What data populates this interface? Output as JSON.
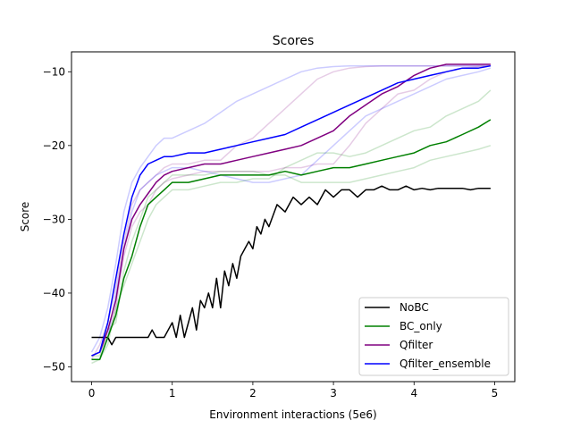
{
  "chart_data": {
    "type": "line",
    "title": "Scores",
    "xlabel": "Environment interactions (5e6)",
    "ylabel": "Score",
    "xlim": [
      -0.25,
      5.25
    ],
    "ylim": [
      -52,
      -7.3
    ],
    "xticks": [
      0,
      1,
      2,
      3,
      4,
      5
    ],
    "xtick_labels": [
      "0",
      "1",
      "2",
      "3",
      "4",
      "5"
    ],
    "yticks": [
      -50,
      -40,
      -30,
      -20,
      -10
    ],
    "ytick_labels": [
      "−50",
      "−40",
      "−30",
      "−20",
      "−10"
    ],
    "grid": false,
    "legend_position": "lower right",
    "series": [
      {
        "name": "NoBC",
        "color": "#000000",
        "x": [
          0,
          0.1,
          0.2,
          0.25,
          0.3,
          0.4,
          0.5,
          0.6,
          0.7,
          0.75,
          0.8,
          0.9,
          0.95,
          1.0,
          1.05,
          1.1,
          1.15,
          1.2,
          1.25,
          1.3,
          1.35,
          1.4,
          1.45,
          1.5,
          1.55,
          1.6,
          1.65,
          1.7,
          1.75,
          1.8,
          1.85,
          1.9,
          1.95,
          2.0,
          2.05,
          2.1,
          2.15,
          2.2,
          2.3,
          2.4,
          2.5,
          2.6,
          2.7,
          2.8,
          2.9,
          3.0,
          3.1,
          3.2,
          3.3,
          3.4,
          3.5,
          3.6,
          3.7,
          3.8,
          3.9,
          4.0,
          4.1,
          4.2,
          4.3,
          4.4,
          4.5,
          4.6,
          4.7,
          4.8,
          4.9,
          4.95
        ],
        "values": [
          -46,
          -46,
          -46,
          -47,
          -46,
          -46,
          -46,
          -46,
          -46,
          -45,
          -46,
          -46,
          -45,
          -44,
          -46,
          -43,
          -46,
          -44,
          -42,
          -45,
          -41,
          -42,
          -40,
          -42,
          -38,
          -42,
          -37,
          -39,
          -36,
          -38,
          -35,
          -34,
          -33,
          -34,
          -31,
          -32,
          -30,
          -31,
          -28,
          -29,
          -27,
          -28,
          -27,
          -28,
          -26,
          -27,
          -26,
          -26,
          -27,
          -26,
          -26,
          -25.5,
          -26,
          -26,
          -25.5,
          -26,
          -25.8,
          -26,
          -25.8,
          -25.8,
          -25.8,
          -25.8,
          -26,
          -25.8,
          -25.8,
          -25.8
        ]
      },
      {
        "name": "BC_only",
        "color": "#008000",
        "x": [
          0,
          0.1,
          0.2,
          0.3,
          0.4,
          0.5,
          0.6,
          0.7,
          0.8,
          0.9,
          1.0,
          1.2,
          1.4,
          1.6,
          1.8,
          2.0,
          2.2,
          2.4,
          2.6,
          2.8,
          3.0,
          3.2,
          3.4,
          3.6,
          3.8,
          4.0,
          4.2,
          4.4,
          4.6,
          4.8,
          4.95
        ],
        "values": [
          -49,
          -49,
          -46,
          -43,
          -38,
          -35,
          -31,
          -28,
          -27,
          -26,
          -25,
          -25,
          -24.5,
          -24,
          -24,
          -24,
          -24,
          -23.5,
          -24,
          -23.5,
          -23,
          -23,
          -22.5,
          -22,
          -21.5,
          -21,
          -20,
          -19.5,
          -18.5,
          -17.5,
          -16.5
        ]
      },
      {
        "name": "Qfilter",
        "color": "#800080",
        "x": [
          0,
          0.1,
          0.2,
          0.3,
          0.4,
          0.5,
          0.6,
          0.7,
          0.8,
          0.9,
          1.0,
          1.2,
          1.4,
          1.6,
          1.8,
          2.0,
          2.2,
          2.4,
          2.6,
          2.8,
          3.0,
          3.2,
          3.4,
          3.6,
          3.8,
          4.0,
          4.2,
          4.4,
          4.6,
          4.8,
          4.95
        ],
        "values": [
          -48.5,
          -48,
          -45,
          -41,
          -34,
          -30,
          -28,
          -26.5,
          -25,
          -24,
          -23.5,
          -23,
          -22.5,
          -22.5,
          -22,
          -21.5,
          -21,
          -20.5,
          -20,
          -19,
          -18,
          -16,
          -14.5,
          -13,
          -12,
          -10.5,
          -9.5,
          -9,
          -9,
          -9,
          -9
        ]
      },
      {
        "name": "Qfilter_ensemble",
        "color": "#0000ff",
        "x": [
          0,
          0.1,
          0.2,
          0.3,
          0.4,
          0.5,
          0.6,
          0.7,
          0.8,
          0.9,
          1.0,
          1.2,
          1.4,
          1.6,
          1.8,
          2.0,
          2.2,
          2.4,
          2.6,
          2.8,
          3.0,
          3.2,
          3.4,
          3.6,
          3.8,
          4.0,
          4.2,
          4.4,
          4.6,
          4.8,
          4.95
        ],
        "values": [
          -48.5,
          -48,
          -44,
          -38,
          -32,
          -27,
          -24,
          -22.5,
          -22,
          -21.5,
          -21.5,
          -21,
          -21,
          -20.5,
          -20,
          -19.5,
          -19,
          -18.5,
          -17.5,
          -16.5,
          -15.5,
          -14.5,
          -13.5,
          -12.5,
          -11.5,
          -11,
          -10.5,
          -10,
          -9.5,
          -9.5,
          -9.2
        ]
      }
    ],
    "background_runs": [
      {
        "color": "#008000",
        "x": [
          0,
          0.1,
          0.2,
          0.3,
          0.4,
          0.5,
          0.6,
          0.7,
          0.8,
          0.9,
          1.0,
          1.2,
          1.4,
          1.6,
          1.8,
          2.0,
          2.2,
          2.4,
          2.6,
          2.8,
          3.0,
          3.2,
          3.4,
          3.6,
          3.8,
          4.0,
          4.2,
          4.4,
          4.6,
          4.8,
          4.95
        ],
        "values": [
          -49.5,
          -49,
          -47,
          -42,
          -39,
          -36,
          -33,
          -30,
          -28,
          -27,
          -26,
          -26,
          -25.5,
          -25,
          -25,
          -24.5,
          -24.5,
          -23,
          -22,
          -21,
          -21,
          -21.5,
          -21,
          -20,
          -19,
          -18,
          -17.5,
          -16,
          -15,
          -14,
          -12.5
        ]
      },
      {
        "color": "#008000",
        "x": [
          0,
          0.1,
          0.2,
          0.3,
          0.4,
          0.5,
          0.6,
          0.7,
          0.8,
          0.9,
          1.0,
          1.2,
          1.4,
          1.6,
          1.8,
          2.0,
          2.2,
          2.4,
          2.6,
          2.8,
          3.0,
          3.2,
          3.4,
          3.6,
          3.8,
          4.0,
          4.2,
          4.4,
          4.6,
          4.8,
          4.95
        ],
        "values": [
          -48.5,
          -48.5,
          -45,
          -44,
          -37,
          -33,
          -30,
          -27,
          -26,
          -25,
          -24,
          -24,
          -24,
          -23.5,
          -23.5,
          -23.5,
          -24,
          -24,
          -25,
          -25,
          -25,
          -25,
          -24.5,
          -24,
          -23.5,
          -23,
          -22,
          -21.5,
          -21,
          -20.5,
          -20
        ]
      },
      {
        "color": "#800080",
        "x": [
          0,
          0.1,
          0.2,
          0.3,
          0.4,
          0.5,
          0.6,
          0.7,
          0.8,
          0.9,
          1.0,
          1.2,
          1.4,
          1.6,
          1.8,
          2.0,
          2.2,
          2.4,
          2.6,
          2.8,
          3.0,
          3.2,
          3.4,
          3.6,
          3.8,
          4.0,
          4.2,
          4.4,
          4.6,
          4.8,
          4.95
        ],
        "values": [
          -49,
          -47,
          -44,
          -39,
          -33,
          -28,
          -26,
          -25,
          -24,
          -23,
          -22.5,
          -22.5,
          -22,
          -22,
          -20,
          -19,
          -17,
          -15,
          -13,
          -11,
          -10,
          -9.5,
          -9.3,
          -9.2,
          -9.2,
          -9.2,
          -9.2,
          -9.2,
          -9.2,
          -9.2,
          -9.2
        ]
      },
      {
        "color": "#800080",
        "x": [
          0,
          0.1,
          0.2,
          0.3,
          0.4,
          0.5,
          0.6,
          0.7,
          0.8,
          0.9,
          1.0,
          1.2,
          1.4,
          1.6,
          1.8,
          2.0,
          2.2,
          2.4,
          2.6,
          2.8,
          3.0,
          3.2,
          3.4,
          3.6,
          3.8,
          4.0,
          4.2,
          4.4,
          4.6,
          4.8,
          4.95
        ],
        "values": [
          -48.5,
          -48,
          -46,
          -42,
          -35,
          -31,
          -29,
          -28,
          -26,
          -25,
          -24.5,
          -24,
          -23.5,
          -23.5,
          -23.5,
          -23.5,
          -23.5,
          -23,
          -23,
          -22.5,
          -22.5,
          -20,
          -17,
          -15,
          -13,
          -12.5,
          -11,
          -10,
          -9.5,
          -9.3,
          -9.2
        ]
      },
      {
        "color": "#0000ff",
        "x": [
          0,
          0.1,
          0.2,
          0.3,
          0.4,
          0.5,
          0.6,
          0.7,
          0.8,
          0.9,
          1.0,
          1.2,
          1.4,
          1.6,
          1.8,
          2.0,
          2.2,
          2.4,
          2.6,
          2.8,
          3.0,
          3.2,
          3.4,
          3.6,
          3.8,
          4.0,
          4.2,
          4.4,
          4.6,
          4.8,
          4.95
        ],
        "values": [
          -48,
          -46,
          -42,
          -36,
          -29,
          -25,
          -23,
          -21.5,
          -20,
          -19,
          -19,
          -18,
          -17,
          -15.5,
          -14,
          -13,
          -12,
          -11,
          -10,
          -9.5,
          -9.3,
          -9.2,
          -9.2,
          -9.2,
          -9.2,
          -9.2,
          -9.2,
          -9.2,
          -9.2,
          -9.2,
          -9.2
        ]
      },
      {
        "color": "#0000ff",
        "x": [
          0,
          0.1,
          0.2,
          0.3,
          0.4,
          0.5,
          0.6,
          0.7,
          0.8,
          0.9,
          1.0,
          1.2,
          1.4,
          1.6,
          1.8,
          2.0,
          2.2,
          2.4,
          2.6,
          2.8,
          3.0,
          3.2,
          3.4,
          3.6,
          3.8,
          4.0,
          4.2,
          4.4,
          4.6,
          4.8,
          4.95
        ],
        "values": [
          -49,
          -49,
          -46,
          -40,
          -34,
          -29,
          -26,
          -25,
          -24,
          -23.5,
          -23,
          -23,
          -23.5,
          -24,
          -24.5,
          -25,
          -25,
          -24.5,
          -24,
          -22,
          -20,
          -18,
          -16,
          -15,
          -14,
          -13,
          -12,
          -11,
          -10.5,
          -10,
          -9.5
        ]
      }
    ]
  }
}
